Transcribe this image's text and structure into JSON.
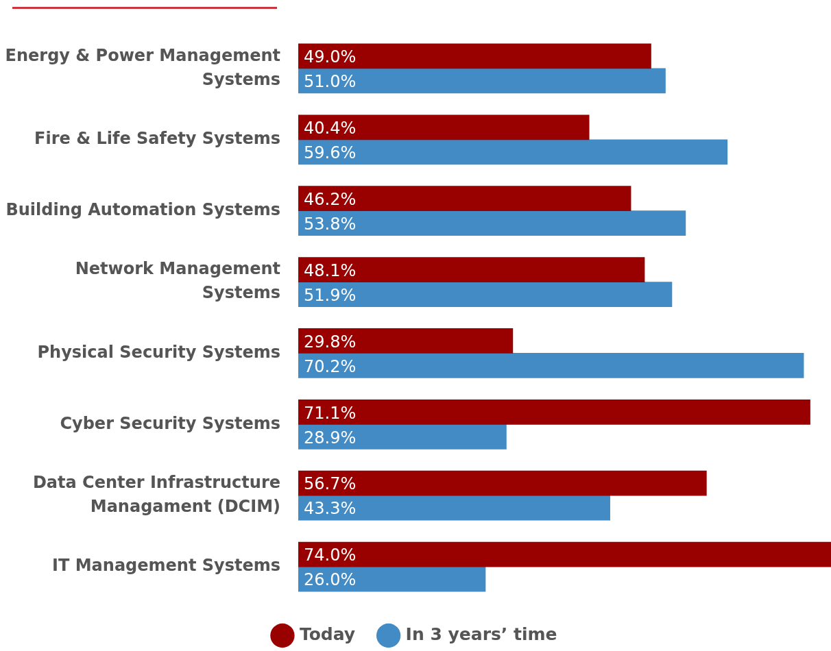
{
  "chart_data": {
    "type": "bar",
    "orientation": "horizontal",
    "categories": [
      "Energy & Power Management Systems",
      "Fire & Life Safety Systems",
      "Building Automation Systems",
      "Network Management Systems",
      "Physical Security Systems",
      "Cyber Security Systems",
      "Data Center Infrastructure Managament (DCIM)",
      "IT Management Systems"
    ],
    "series": [
      {
        "name": "Today",
        "color": "#990000",
        "values": [
          49.0,
          40.4,
          46.2,
          48.1,
          29.8,
          71.1,
          56.7,
          74.0
        ],
        "value_labels": [
          "49.0%",
          "40.4%",
          "46.2%",
          "48.1%",
          "29.8%",
          "71.1%",
          "56.7%",
          "74.0%"
        ]
      },
      {
        "name": "In 3 years’ time",
        "color": "#428bc4",
        "values": [
          51.0,
          59.6,
          53.8,
          51.9,
          70.2,
          28.9,
          43.3,
          26.0
        ],
        "value_labels": [
          "51.0%",
          "59.6%",
          "53.8%",
          "51.9%",
          "70.2%",
          "28.9%",
          "43.3%",
          "26.0%"
        ]
      }
    ],
    "xlim": [
      0,
      74
    ],
    "tick_labels": "y",
    "legend": "bottom"
  }
}
